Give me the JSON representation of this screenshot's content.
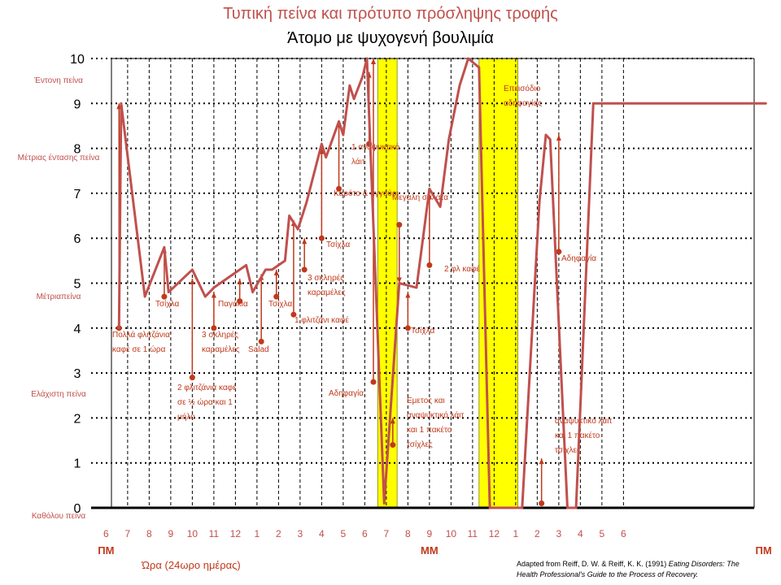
{
  "title": "Τυπική πείνα και πρότυπο πρόσληψης τροφής",
  "subtitle": "Άτομο με ψυχογενή βουλιμία",
  "credit": {
    "line1": "Adapted from Reiff, D. W. & Reiff, K. K. (1991)",
    "line1_italic": "Eating Disorders: The",
    "line2": "Health Professional's Guide to the Process of Recovery."
  },
  "colors": {
    "line": "#c0504d",
    "annotation": "#c0391b",
    "highlight": "#ffff00",
    "highlight_border": "#7f7f00",
    "axis_text": "#c0504d",
    "tick_text": "#000000"
  },
  "chart_data": {
    "type": "line",
    "ylim": [
      0,
      10
    ],
    "y_ticks": [
      0,
      1,
      2,
      3,
      4,
      5,
      6,
      7,
      8,
      9,
      10
    ],
    "y_category_labels": [
      {
        "y": 10,
        "label": "Έντονη πείνα"
      },
      {
        "y": 8,
        "label": "Μέτριας έντασης πείνα"
      },
      {
        "y": 5,
        "label": "Μέτριαπείνα"
      },
      {
        "y": 3,
        "label": "Ελάχιστη πείνα"
      },
      {
        "y": 0,
        "label": "Καθόλου πείνα"
      }
    ],
    "x_ticks": [
      "6",
      "7",
      "8",
      "9",
      "10",
      "11",
      "12",
      "1",
      "2",
      "3",
      "4",
      "5",
      "6",
      "7",
      "8",
      "9",
      "10",
      "11",
      "12",
      "1",
      "2",
      "3",
      "4",
      "5",
      "6"
    ],
    "x_period_labels": [
      {
        "at": 0,
        "label": "ΠΜ"
      },
      {
        "at": 15,
        "label": "ΜΜ"
      },
      {
        "at": 30.5,
        "label": "ΠΜ"
      }
    ],
    "xlabel": "Ώρα (24ωρο ημέρας)",
    "highlight_bands": [
      [
        12.6,
        13.5
      ],
      [
        17.3,
        19.1
      ]
    ],
    "series": [
      {
        "x": [
          0.6,
          0.7,
          1.8,
          2.7,
          2.9,
          4.0,
          4.6,
          5.0,
          6.5,
          6.8,
          7.4,
          7.7,
          8.3,
          8.5,
          8.9,
          9.3,
          10.0,
          10.2,
          10.8,
          11.0,
          11.3,
          11.5,
          11.9,
          12.1,
          12.9,
          13.6,
          14.4,
          15.0,
          15.5,
          15.9,
          16.4,
          16.8,
          17.3,
          17.8,
          18.4,
          19.3,
          20.1,
          20.4,
          20.6,
          21.4,
          21.8,
          22.6,
          23.2,
          24.4,
          25.2,
          30.6
        ],
        "values": [
          4.0,
          9.0,
          4.7,
          5.8,
          4.8,
          5.3,
          4.7,
          4.9,
          5.4,
          4.8,
          5.3,
          5.3,
          5.5,
          6.5,
          6.2,
          6.8,
          8.1,
          7.8,
          8.6,
          8.3,
          9.4,
          9.1,
          9.6,
          10.0,
          0.1,
          5.0,
          4.9,
          7.1,
          6.7,
          8.2,
          9.4,
          10.0,
          9.8,
          0.0,
          0.0,
          0.0,
          6.8,
          8.3,
          8.2,
          0.0,
          0.0,
          9.0,
          9.0,
          9.0,
          9.0,
          9.0
        ]
      }
    ],
    "annotations": [
      {
        "x": 0.6,
        "y_from": 4.0,
        "y_to": 9.0,
        "label": "Πολλά φλιτζάνια καφέ σε 1 ώρα"
      },
      {
        "x": 2.7,
        "y_from": 4.7,
        "y_to": 5.8,
        "label": "Τσίχλα"
      },
      {
        "x": 4.0,
        "y_from": 2.9,
        "y_to": 5.1,
        "label": "2 φλιτζάνια καφέ σε ½ ώρα και 1 μήλο"
      },
      {
        "x": 5.0,
        "y_from": 4.0,
        "y_to": 4.8,
        "label": "3 σκληρές καραμέλες"
      },
      {
        "x": 6.2,
        "y_from": 4.6,
        "y_to": 5.1,
        "label": "Παγάκια"
      },
      {
        "x": 7.2,
        "y_from": 3.7,
        "y_to": 5.2,
        "label": "Salad"
      },
      {
        "x": 7.9,
        "y_from": 4.7,
        "y_to": 5.3,
        "label": "Τσίχλα"
      },
      {
        "x": 8.5,
        "y_from": 5.5,
        "y_to": 5.5,
        "label": ""
      },
      {
        "x": 8.7,
        "y_from": 4.3,
        "y_to": 6.4,
        "label": "1 φλιτζάνι καφέ"
      },
      {
        "x": 9.2,
        "y_from": 5.3,
        "y_to": 6.0,
        "label": "3 σκληρές καραμέλες"
      },
      {
        "x": 10.0,
        "y_from": 6.0,
        "y_to": 8.0,
        "label": "Τσίχλα"
      },
      {
        "x": 10.8,
        "y_from": 7.1,
        "y_to": 8.6,
        "label": "Καρότο & αγγούρι"
      },
      {
        "x": 12.2,
        "y_from": 8.1,
        "y_to": 9.7,
        "label": "1 αναψυκτικό λάιτ"
      },
      {
        "x": 12.4,
        "y_from": 2.8,
        "y_to": 10.0,
        "label": "Αδηφαγία"
      },
      {
        "x": 13.3,
        "y_from": 1.4,
        "y_to": 2.0,
        "label": "Εμετος και αναψυκτικό λάιτ και 1 πακέτο τσίχλες"
      },
      {
        "x": 13.6,
        "y_from": 6.3,
        "y_to": 5.0,
        "label": "Μεγάλη σαλάτα"
      },
      {
        "x": 14.0,
        "y_from": 4.0,
        "y_to": 4.8,
        "label": "Τσίχλα"
      },
      {
        "x": 15.0,
        "y_from": 5.4,
        "y_to": 7.0,
        "label": "2 φλ καφέ"
      },
      {
        "x": 17.6,
        "y_from": 9.8,
        "y_to": 9.8,
        "label": "Επεισόδιο αδηφαγίας"
      },
      {
        "x": 20.2,
        "y_from": 0.1,
        "y_to": 1.1,
        "label": "αναψυκτικό λάιτ και 1 πακέτο τσίχλες"
      },
      {
        "x": 21.0,
        "y_from": 5.7,
        "y_to": 8.3,
        "label": "Αδηφαγία"
      }
    ]
  }
}
